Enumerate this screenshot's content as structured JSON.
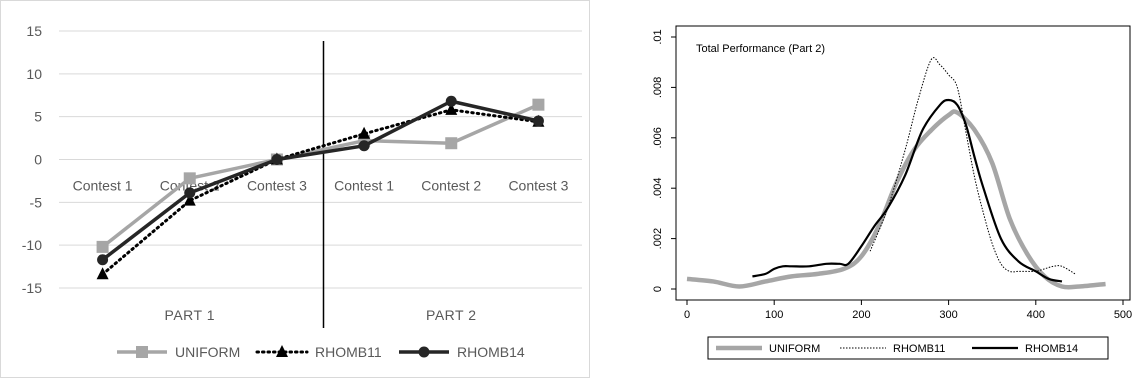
{
  "chart_data": [
    {
      "type": "line",
      "title": "",
      "xlabel": "",
      "ylabel": "",
      "ylim": [
        -15,
        15
      ],
      "yticks": [
        -15,
        -10,
        -5,
        0,
        5,
        10,
        15
      ],
      "grid": true,
      "legend_position": "bottom",
      "categories": [
        "Contest 1",
        "Contest 2",
        "Contest 3",
        "Contest 1",
        "Contest 2",
        "Contest 3"
      ],
      "groups": [
        "PART 1",
        "PART 2"
      ],
      "divider_after_category": 3,
      "series": [
        {
          "name": "UNIFORM",
          "values": [
            -10.2,
            -2.2,
            0.0,
            2.2,
            1.9,
            6.4
          ],
          "color": "#a6a6a6",
          "marker": "square",
          "style": "solid"
        },
        {
          "name": "RHOMB11",
          "values": [
            -13.4,
            -4.8,
            0.0,
            3.0,
            5.8,
            4.4
          ],
          "color": "#000000",
          "marker": "triangle",
          "style": "dotted"
        },
        {
          "name": "RHOMB14",
          "values": [
            -11.7,
            -3.9,
            0.0,
            1.6,
            6.8,
            4.5
          ],
          "color": "#262626",
          "marker": "circle",
          "style": "solid"
        }
      ]
    },
    {
      "type": "line",
      "title": "Total Performance (Part 2)",
      "xlabel": "",
      "ylabel": "",
      "xlim": [
        0,
        500
      ],
      "ylim": [
        0,
        0.01
      ],
      "xticks": [
        0,
        100,
        200,
        300,
        400,
        500
      ],
      "ytick_labels": [
        "0",
        ".002",
        ".004",
        ".006",
        ".008",
        ".01"
      ],
      "grid": false,
      "legend_position": "bottom",
      "series": [
        {
          "name": "UNIFORM",
          "color": "#a6a6a6",
          "style": "thick",
          "x": [
            0,
            30,
            60,
            90,
            120,
            150,
            180,
            200,
            220,
            240,
            260,
            280,
            300,
            310,
            330,
            350,
            370,
            390,
            410,
            430,
            450,
            480
          ],
          "y": [
            0.0004,
            0.0003,
            0.0001,
            0.0003,
            0.0005,
            0.0006,
            0.0008,
            0.0013,
            0.0025,
            0.0042,
            0.0055,
            0.0063,
            0.0069,
            0.007,
            0.0063,
            0.005,
            0.0028,
            0.0014,
            0.0005,
            0.0001,
            0.0001,
            0.0002
          ]
        },
        {
          "name": "RHOMB11",
          "color": "#000000",
          "style": "dotted",
          "x": [
            210,
            230,
            250,
            265,
            280,
            290,
            300,
            310,
            320,
            330,
            340,
            350,
            360,
            370,
            380,
            390,
            400,
            410,
            420,
            430,
            445
          ],
          "y": [
            0.0015,
            0.0032,
            0.0055,
            0.0075,
            0.0091,
            0.0089,
            0.0085,
            0.008,
            0.0062,
            0.0044,
            0.003,
            0.0018,
            0.001,
            0.0007,
            0.0007,
            0.0007,
            0.0007,
            0.0008,
            0.0009,
            0.0009,
            0.0006
          ]
        },
        {
          "name": "RHOMB14",
          "color": "#000000",
          "style": "solid",
          "x": [
            75,
            90,
            100,
            110,
            120,
            140,
            160,
            175,
            185,
            200,
            215,
            230,
            250,
            270,
            290,
            300,
            310,
            320,
            330,
            340,
            360,
            380,
            400,
            415,
            430
          ],
          "y": [
            0.0005,
            0.0006,
            0.0008,
            0.0009,
            0.0009,
            0.0009,
            0.001,
            0.001,
            0.001,
            0.0017,
            0.0025,
            0.0032,
            0.0045,
            0.0063,
            0.0073,
            0.0075,
            0.0073,
            0.0065,
            0.0052,
            0.004,
            0.002,
            0.0011,
            0.0007,
            0.0004,
            0.0003
          ]
        }
      ]
    }
  ]
}
